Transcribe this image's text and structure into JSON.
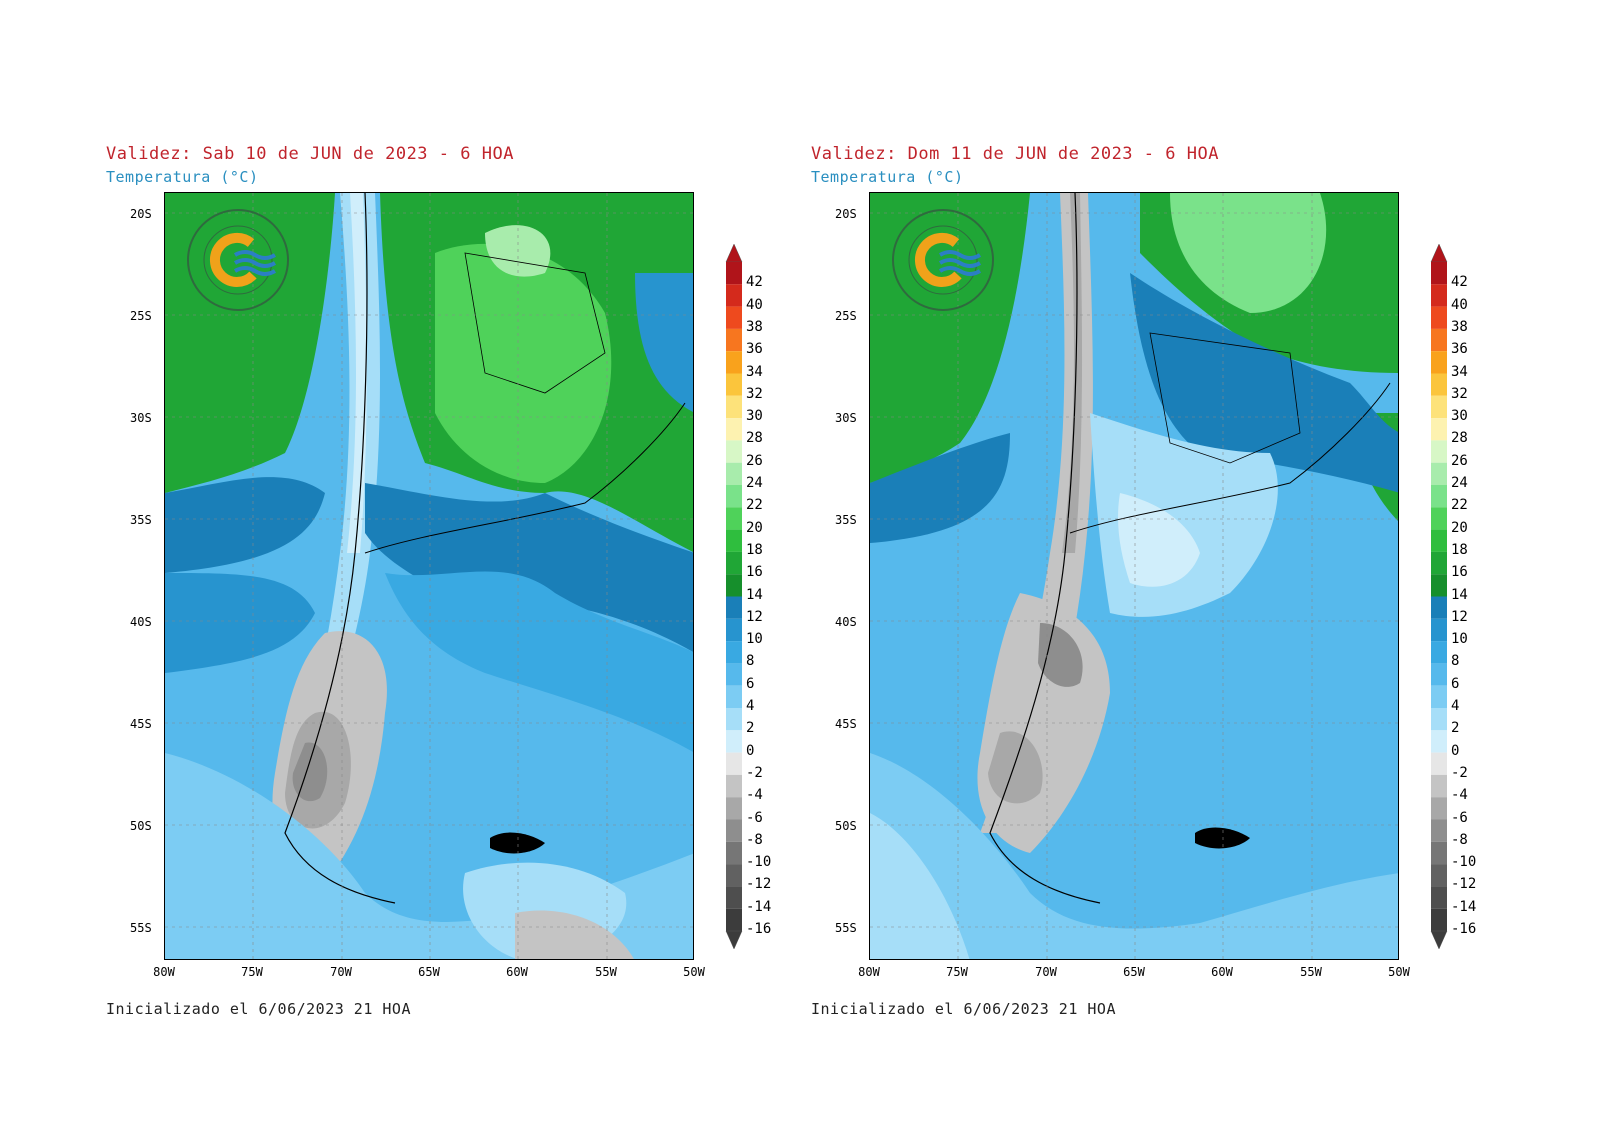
{
  "panels": [
    {
      "title": "Validez: Sab 10 de JUN de 2023 - 6 HOA",
      "subtitle": "Temperatura (°C)",
      "init": "Inicializado el 6/06/2023 21 HOA"
    },
    {
      "title": "Validez: Dom 11 de JUN de 2023 - 6 HOA",
      "subtitle": "Temperatura (°C)",
      "init": "Inicializado el 6/06/2023 21 HOA"
    }
  ],
  "lat_labels": [
    "20S",
    "25S",
    "30S",
    "35S",
    "40S",
    "45S",
    "50S",
    "55S"
  ],
  "lon_labels": [
    "80W",
    "75W",
    "70W",
    "65W",
    "60W",
    "55W",
    "50W"
  ],
  "colorbar": {
    "labels": [
      "42",
      "40",
      "38",
      "36",
      "34",
      "32",
      "30",
      "28",
      "26",
      "24",
      "22",
      "20",
      "18",
      "16",
      "14",
      "12",
      "10",
      "8",
      "6",
      "4",
      "2",
      "0",
      "-2",
      "-4",
      "-6",
      "-8",
      "-10",
      "-12",
      "-14",
      "-16"
    ],
    "colors": [
      "#b0141a",
      "#d42a1c",
      "#ee4a1e",
      "#f7761f",
      "#f9a21c",
      "#fbc53c",
      "#fde27a",
      "#fdf2b0",
      "#d7f7c6",
      "#a8ecac",
      "#7ae28a",
      "#4fd25a",
      "#2fbe3e",
      "#20a636",
      "#168f2c",
      "#1a7fb8",
      "#2794cf",
      "#39a9e2",
      "#56b9ec",
      "#7cccf3",
      "#a6def8",
      "#d0eefb",
      "#e6e6e6",
      "#c4c4c4",
      "#a8a8a8",
      "#8e8e8e",
      "#767676",
      "#616161",
      "#4e4e4e",
      "#3c3c3c"
    ]
  },
  "logo": {
    "ring_text_top": "SERVICIO METEOROLÓGICO NACIONAL",
    "ring_text_bottom": "ARGENTINA",
    "colors": {
      "ring": "#2f6a3e",
      "orange": "#f0a21a",
      "blue": "#2b7fc4"
    }
  }
}
